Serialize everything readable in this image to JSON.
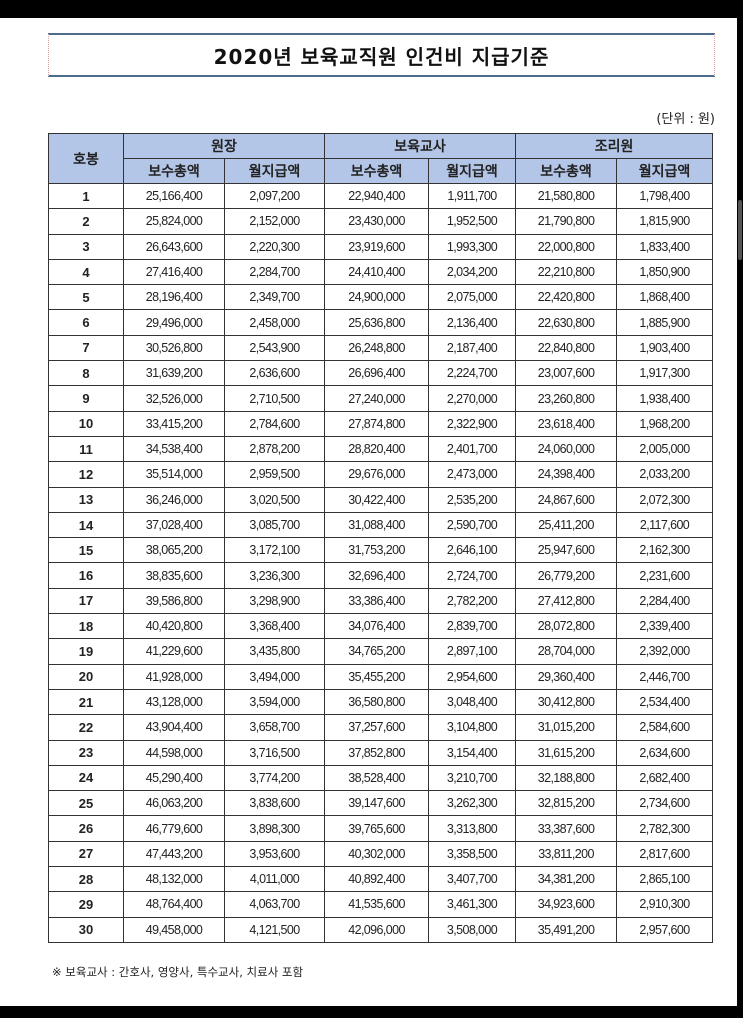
{
  "title": "2020년 보육교직원 인건비 지급기준",
  "unit": "(단위 : 원)",
  "header": {
    "step": "호봉",
    "groups": [
      "원장",
      "보육교사",
      "조리원"
    ],
    "sub": [
      "보수총액",
      "월지급액"
    ]
  },
  "header_color": "#b4c6e7",
  "rows": [
    [
      "1",
      "25,166,400",
      "2,097,200",
      "22,940,400",
      "1,911,700",
      "21,580,800",
      "1,798,400"
    ],
    [
      "2",
      "25,824,000",
      "2,152,000",
      "23,430,000",
      "1,952,500",
      "21,790,800",
      "1,815,900"
    ],
    [
      "3",
      "26,643,600",
      "2,220,300",
      "23,919,600",
      "1,993,300",
      "22,000,800",
      "1,833,400"
    ],
    [
      "4",
      "27,416,400",
      "2,284,700",
      "24,410,400",
      "2,034,200",
      "22,210,800",
      "1,850,900"
    ],
    [
      "5",
      "28,196,400",
      "2,349,700",
      "24,900,000",
      "2,075,000",
      "22,420,800",
      "1,868,400"
    ],
    [
      "6",
      "29,496,000",
      "2,458,000",
      "25,636,800",
      "2,136,400",
      "22,630,800",
      "1,885,900"
    ],
    [
      "7",
      "30,526,800",
      "2,543,900",
      "26,248,800",
      "2,187,400",
      "22,840,800",
      "1,903,400"
    ],
    [
      "8",
      "31,639,200",
      "2,636,600",
      "26,696,400",
      "2,224,700",
      "23,007,600",
      "1,917,300"
    ],
    [
      "9",
      "32,526,000",
      "2,710,500",
      "27,240,000",
      "2,270,000",
      "23,260,800",
      "1,938,400"
    ],
    [
      "10",
      "33,415,200",
      "2,784,600",
      "27,874,800",
      "2,322,900",
      "23,618,400",
      "1,968,200"
    ],
    [
      "11",
      "34,538,400",
      "2,878,200",
      "28,820,400",
      "2,401,700",
      "24,060,000",
      "2,005,000"
    ],
    [
      "12",
      "35,514,000",
      "2,959,500",
      "29,676,000",
      "2,473,000",
      "24,398,400",
      "2,033,200"
    ],
    [
      "13",
      "36,246,000",
      "3,020,500",
      "30,422,400",
      "2,535,200",
      "24,867,600",
      "2,072,300"
    ],
    [
      "14",
      "37,028,400",
      "3,085,700",
      "31,088,400",
      "2,590,700",
      "25,411,200",
      "2,117,600"
    ],
    [
      "15",
      "38,065,200",
      "3,172,100",
      "31,753,200",
      "2,646,100",
      "25,947,600",
      "2,162,300"
    ],
    [
      "16",
      "38,835,600",
      "3,236,300",
      "32,696,400",
      "2,724,700",
      "26,779,200",
      "2,231,600"
    ],
    [
      "17",
      "39,586,800",
      "3,298,900",
      "33,386,400",
      "2,782,200",
      "27,412,800",
      "2,284,400"
    ],
    [
      "18",
      "40,420,800",
      "3,368,400",
      "34,076,400",
      "2,839,700",
      "28,072,800",
      "2,339,400"
    ],
    [
      "19",
      "41,229,600",
      "3,435,800",
      "34,765,200",
      "2,897,100",
      "28,704,000",
      "2,392,000"
    ],
    [
      "20",
      "41,928,000",
      "3,494,000",
      "35,455,200",
      "2,954,600",
      "29,360,400",
      "2,446,700"
    ],
    [
      "21",
      "43,128,000",
      "3,594,000",
      "36,580,800",
      "3,048,400",
      "30,412,800",
      "2,534,400"
    ],
    [
      "22",
      "43,904,400",
      "3,658,700",
      "37,257,600",
      "3,104,800",
      "31,015,200",
      "2,584,600"
    ],
    [
      "23",
      "44,598,000",
      "3,716,500",
      "37,852,800",
      "3,154,400",
      "31,615,200",
      "2,634,600"
    ],
    [
      "24",
      "45,290,400",
      "3,774,200",
      "38,528,400",
      "3,210,700",
      "32,188,800",
      "2,682,400"
    ],
    [
      "25",
      "46,063,200",
      "3,838,600",
      "39,147,600",
      "3,262,300",
      "32,815,200",
      "2,734,600"
    ],
    [
      "26",
      "46,779,600",
      "3,898,300",
      "39,765,600",
      "3,313,800",
      "33,387,600",
      "2,782,300"
    ],
    [
      "27",
      "47,443,200",
      "3,953,600",
      "40,302,000",
      "3,358,500",
      "33,811,200",
      "2,817,600"
    ],
    [
      "28",
      "48,132,000",
      "4,011,000",
      "40,892,400",
      "3,407,700",
      "34,381,200",
      "2,865,100"
    ],
    [
      "29",
      "48,764,400",
      "4,063,700",
      "41,535,600",
      "3,461,300",
      "34,923,600",
      "2,910,300"
    ],
    [
      "30",
      "49,458,000",
      "4,121,500",
      "42,096,000",
      "3,508,000",
      "35,491,200",
      "2,957,600"
    ]
  ],
  "footnote": "※ 보육교사 : 간호사, 영양사, 특수교사, 치료사 포함"
}
